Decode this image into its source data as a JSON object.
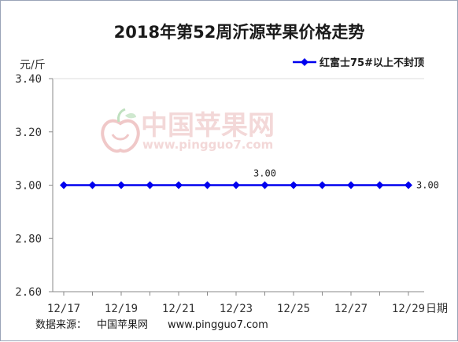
{
  "chart_data": {
    "type": "line",
    "title": "2018年第52周沂源苹果价格走势",
    "ylabel": "元/斤",
    "xlabel": "日期",
    "ylim": [
      2.6,
      3.4
    ],
    "yticks": [
      "3.40",
      "3.20",
      "3.00",
      "2.80",
      "2.60"
    ],
    "ytick_values": [
      3.4,
      3.2,
      3.0,
      2.8,
      2.6
    ],
    "categories": [
      "12/17",
      "12/18",
      "12/19",
      "12/20",
      "12/21",
      "12/22",
      "12/23",
      "12/24",
      "12/25",
      "12/26",
      "12/27",
      "12/28",
      "12/29"
    ],
    "xtick_labels": [
      "12/17",
      "12/19",
      "12/21",
      "12/23",
      "12/25",
      "12/27",
      "12/29"
    ],
    "series": [
      {
        "name": "红富士75#以上不封顶",
        "values": [
          3.0,
          3.0,
          3.0,
          3.0,
          3.0,
          3.0,
          3.0,
          3.0,
          3.0,
          3.0,
          3.0,
          3.0,
          3.0
        ],
        "color": "#0000ee"
      }
    ],
    "data_labels": [
      {
        "index": 7,
        "text": "3.00",
        "position": "above"
      },
      {
        "index": 12,
        "text": "3.00",
        "position": "right"
      }
    ],
    "legend_position": "top-right",
    "grid": false
  },
  "watermark": {
    "name": "中国苹果网",
    "url": "www.pingguo7.com",
    "icon": "apple-logo-icon"
  },
  "source": {
    "label": "数据来源：",
    "name": "中国苹果网",
    "url": "www.pingguo7.com"
  }
}
